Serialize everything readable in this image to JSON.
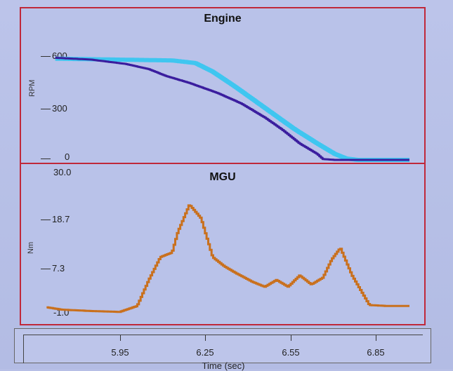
{
  "chart_data": [
    {
      "type": "line",
      "title": "Engine",
      "ylabel": "RPM",
      "ylim": [
        0,
        600
      ],
      "y_ticks": [
        "600",
        "300",
        "0"
      ],
      "xlim": [
        5.75,
        7.0
      ],
      "series": [
        {
          "color": "#3fc6f0",
          "x": [
            5.78,
            6.18,
            6.26,
            6.32,
            6.4,
            6.5,
            6.6,
            6.68,
            6.74,
            6.78,
            6.82,
            6.9,
            7.0
          ],
          "y": [
            585,
            575,
            560,
            510,
            420,
            300,
            180,
            95,
            35,
            8,
            0,
            0,
            0
          ]
        },
        {
          "color": "#3a1d9e",
          "x": [
            5.78,
            5.9,
            6.02,
            6.1,
            6.16,
            6.24,
            6.34,
            6.42,
            6.5,
            6.56,
            6.62,
            6.68,
            6.7,
            6.74,
            6.8,
            7.0
          ],
          "y": [
            590,
            580,
            555,
            525,
            485,
            445,
            385,
            325,
            245,
            175,
            95,
            35,
            5,
            0,
            0,
            0
          ]
        }
      ]
    },
    {
      "type": "line",
      "title": "MGU",
      "ylabel": "Nm",
      "ylim": [
        -1.0,
        30.0
      ],
      "y_ticks": [
        "30.0",
        "18.7",
        "7.3",
        "-1.0"
      ],
      "series": [
        {
          "color": "#c9701d",
          "x": [
            5.75,
            5.8,
            5.9,
            6.0,
            6.06,
            6.1,
            6.14,
            6.18,
            6.2,
            6.24,
            6.28,
            6.32,
            6.36,
            6.4,
            6.46,
            6.5,
            6.54,
            6.58,
            6.62,
            6.66,
            6.7,
            6.73,
            6.76,
            6.8,
            6.86,
            6.92,
            7.0
          ],
          "y": [
            0.5,
            0.0,
            -0.3,
            -0.5,
            0.8,
            6.5,
            11.5,
            12.5,
            17.0,
            23.0,
            20.0,
            11.5,
            9.5,
            8.0,
            6.0,
            5.0,
            6.5,
            5.0,
            7.5,
            5.5,
            7.0,
            11.0,
            13.5,
            7.5,
            1.0,
            0.8,
            0.8
          ]
        }
      ]
    }
  ],
  "time_axis": {
    "ticks": [
      "5.95",
      "6.25",
      "6.55",
      "6.85"
    ],
    "label": "Time (sec)"
  }
}
